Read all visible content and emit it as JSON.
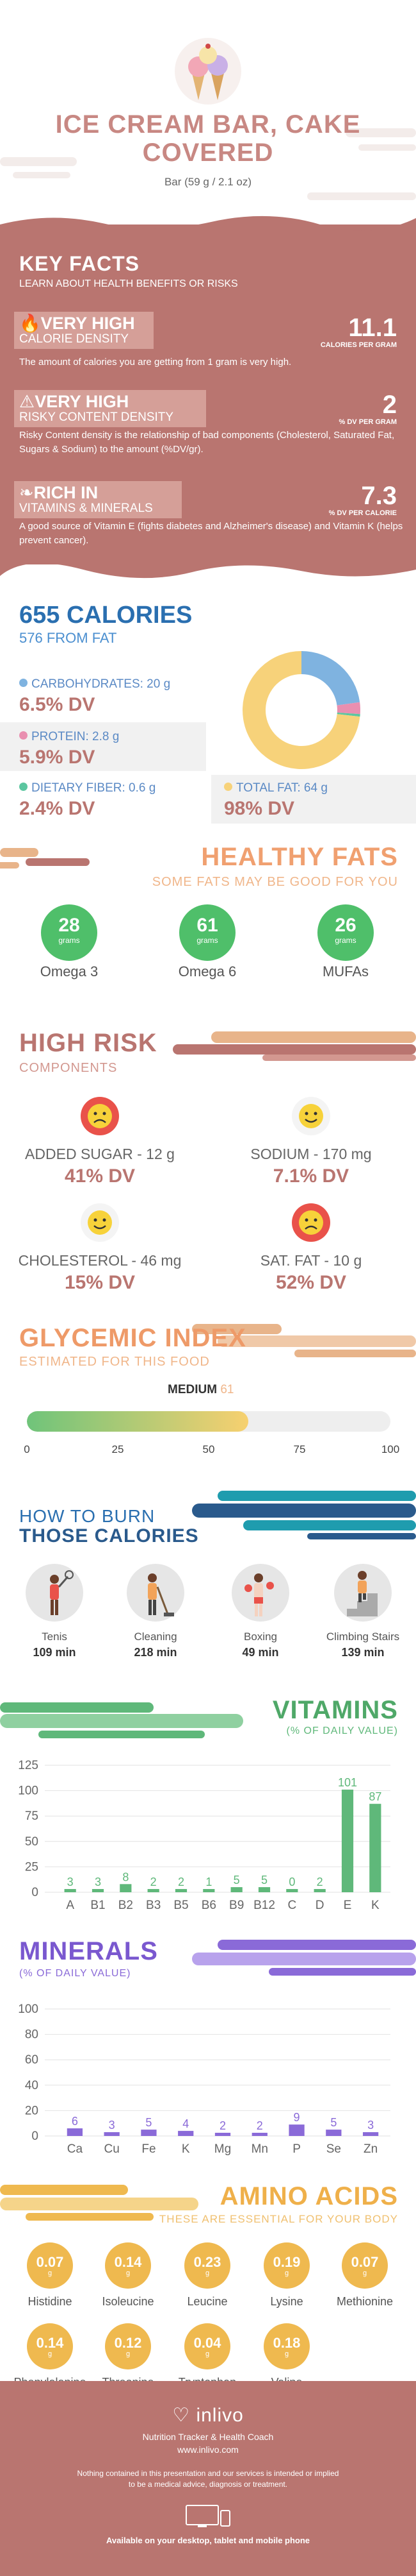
{
  "header": {
    "title_line1": "ICE CREAM BAR, CAKE",
    "title_line2": "COVERED",
    "serving": "Bar (59 g / 2.1 oz)"
  },
  "key_facts": {
    "title": "KEY FACTS",
    "subtitle": "LEARN ABOUT HEALTH BENEFITS OR RISKS",
    "items": [
      {
        "icon": "flame-icon",
        "level": "VERY HIGH",
        "name": "CALORIE DENSITY",
        "value": "11.1",
        "unit": "CALORIES PER GRAM",
        "desc": "The amount of calories you are getting from 1 gram is very high."
      },
      {
        "icon": "warning-icon",
        "level": "VERY HIGH",
        "name": "RISKY CONTENT DENSITY",
        "value": "2",
        "unit": "% DV PER GRAM",
        "desc": "Risky Content density is the relationship of bad components (Cholesterol, Saturated Fat, Sugars & Sodium) to the amount (%DV/gr)."
      },
      {
        "icon": "leaf-icon",
        "level": "RICH  IN",
        "name": "VITAMINS & MINERALS",
        "value": "7.3",
        "unit": "% DV PER CALORIE",
        "desc": "A good source of Vitamin E (fights diabetes and Alzheimer's disease) and Vitamin K (helps prevent cancer)."
      }
    ]
  },
  "calories": {
    "title": "655 CALORIES",
    "subtitle": "576 FROM FAT",
    "macros": [
      {
        "label": "CARBOHYDRATES: 20 g",
        "dv": "6.5% DV",
        "color": "#7fb3e0"
      },
      {
        "label": "PROTEIN: 2.8 g",
        "dv": "5.9% DV",
        "color": "#e98fb0"
      },
      {
        "label": "DIETARY FIBER: 0.6 g",
        "dv": "2.4% DV",
        "color": "#5cc6a0"
      },
      {
        "label": "TOTAL FAT: 64 g",
        "dv": "98% DV",
        "color": "#f7d27a"
      }
    ]
  },
  "donut": {
    "slices": [
      {
        "name": "carbohydrates",
        "value": 20,
        "color": "#7fb3e0"
      },
      {
        "name": "protein",
        "value": 2.8,
        "color": "#e98fb0"
      },
      {
        "name": "fiber",
        "value": 0.6,
        "color": "#5cc6a0"
      },
      {
        "name": "fat",
        "value": 64,
        "color": "#f7d27a"
      }
    ]
  },
  "healthy_fats": {
    "title": "HEALTHY FATS",
    "subtitle": "SOME FATS MAY BE GOOD FOR YOU",
    "unit": "grams",
    "items": [
      {
        "value": "28",
        "label": "Omega 3"
      },
      {
        "value": "61",
        "label": "Omega 6"
      },
      {
        "value": "26",
        "label": "MUFAs"
      }
    ]
  },
  "high_risk": {
    "title": "HIGH RISK",
    "subtitle": "COMPONENTS",
    "items": [
      {
        "label": "ADDED SUGAR - 12 g",
        "dv": "41% DV",
        "face": "sad-face-icon"
      },
      {
        "label": "SODIUM - 170 mg",
        "dv": "7.1% DV",
        "face": "happy-face-icon"
      },
      {
        "label": "CHOLESTEROL - 46 mg",
        "dv": "15% DV",
        "face": "happy-face-icon"
      },
      {
        "label": "SAT. FAT - 10 g",
        "dv": "52% DV",
        "face": "sad-face-icon"
      }
    ]
  },
  "glycemic": {
    "title": "GLYCEMIC INDEX",
    "subtitle": "ESTIMATED FOR THIS FOOD",
    "level": "MEDIUM",
    "value": 61,
    "value_text": "61",
    "ticks": [
      "0",
      "25",
      "50",
      "75",
      "100"
    ]
  },
  "burn": {
    "title_line1": "HOW TO BURN",
    "title_line2": "THOSE CALORIES",
    "items": [
      {
        "label": "Tenis",
        "minutes": "109 min",
        "icon": "tennis-player-icon"
      },
      {
        "label": "Cleaning",
        "minutes": "218 min",
        "icon": "cleaning-person-icon"
      },
      {
        "label": "Boxing",
        "minutes": "49 min",
        "icon": "boxer-icon"
      },
      {
        "label": "Climbing Stairs",
        "minutes": "139 min",
        "icon": "stair-climber-icon"
      }
    ]
  },
  "vitamins": {
    "title": "VITAMINS",
    "subtitle": "(% OF DAILY VALUE)"
  },
  "minerals": {
    "title": "MINERALS",
    "subtitle": "(% OF DAILY VALUE)"
  },
  "chart_data": [
    {
      "type": "bar",
      "categories": [
        "A",
        "B1",
        "B2",
        "B3",
        "B5",
        "B6",
        "B9",
        "B12",
        "C",
        "D",
        "E",
        "K"
      ],
      "values": [
        3,
        3,
        8,
        2,
        2,
        1,
        5,
        5,
        0,
        2,
        101,
        87
      ],
      "labels": [
        "3",
        "3",
        "8",
        "2",
        "2",
        "1",
        "5",
        "5",
        "0",
        "2",
        "101",
        "87"
      ],
      "ylim": [
        0,
        125
      ],
      "yticks": [
        "0",
        "25",
        "50",
        "75",
        "100",
        "125"
      ],
      "color": "#5fb87a"
    },
    {
      "type": "bar",
      "categories": [
        "Ca",
        "Cu",
        "Fe",
        "K",
        "Mg",
        "Mn",
        "P",
        "Se",
        "Zn"
      ],
      "values": [
        6,
        3,
        5,
        4,
        2,
        2,
        9,
        5,
        3
      ],
      "labels": [
        "6",
        "3",
        "5",
        "4",
        "2",
        "2",
        "9",
        "5",
        "3"
      ],
      "ylim": [
        0,
        100
      ],
      "yticks": [
        "0",
        "20",
        "40",
        "60",
        "80",
        "100"
      ],
      "color": "#8a6ad8"
    }
  ],
  "amino": {
    "title": "AMINO ACIDS",
    "subtitle": "THESE ARE ESSENTIAL FOR YOUR BODY",
    "unit": "g",
    "items": [
      {
        "value": "0.07",
        "label": "Histidine"
      },
      {
        "value": "0.14",
        "label": "Isoleucine"
      },
      {
        "value": "0.23",
        "label": "Leucine"
      },
      {
        "value": "0.19",
        "label": "Lysine"
      },
      {
        "value": "0.07",
        "label": "Methionine"
      },
      {
        "value": "0.14",
        "label": "Phenylalanine"
      },
      {
        "value": "0.12",
        "label": "Threonine"
      },
      {
        "value": "0.04",
        "label": "Tryptophan"
      },
      {
        "value": "0.18",
        "label": "Valine"
      }
    ]
  },
  "footer": {
    "brand": "inlivo",
    "tagline": "Nutrition Tracker & Health Coach",
    "url": "www.inlivo.com",
    "disclaimer_line1": "Nothing contained in this presentation and our services is intended or implied",
    "disclaimer_line2": "to be a medical advice, diagnosis or treatment.",
    "available": "Available on your desktop, tablet and mobile phone"
  }
}
